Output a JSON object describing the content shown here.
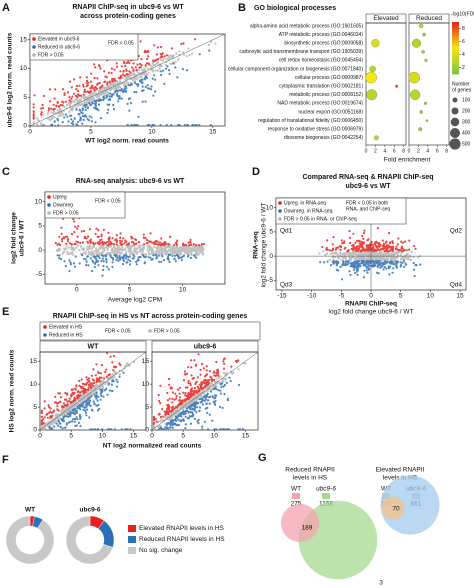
{
  "panel_a": {
    "letter": "A",
    "title": [
      "RNAPII ChIP-seq in ubc9-6 vs WT",
      "across protein-coding genes"
    ],
    "legend": [
      {
        "label": "Elevated in ubc9-6",
        "color": "#e8211d"
      },
      {
        "label": "Reduced in ubc9-6",
        "color": "#2b6fb6"
      },
      {
        "label": "FDR > 0.05",
        "color": "#b5b5b5"
      }
    ],
    "legend_note": "FDR < 0.05",
    "xlabel": "WT log2 norm. read counts",
    "ylabel": [
      "ubc9-6 log2 norm. read counts"
    ],
    "xlim": [
      0,
      16
    ],
    "ylim": [
      0,
      16
    ],
    "xticks": [
      0,
      5,
      10,
      15
    ],
    "yticks": [
      0,
      5,
      10,
      15
    ]
  },
  "panel_b": {
    "letter": "B",
    "title": "GO biological processes",
    "terms": [
      "alpha-amino acid metabolic process (GO:1901605)",
      "ATP metabolic process (GO:0046034)",
      "biosynthetic process (GO:0009058)",
      "carboxylic acid transmembrane transport (GO:1905039)",
      "cell redox homeostasis (GO:0045454)",
      "cellular component organization or biogenesis (GO:0071840)",
      "cellular process (GO:0009987)",
      "cytoplasmic translation (GO:0002181)",
      "metabolic process (GO:0008152)",
      "NAD metabolic process (GO:0019674)",
      "nuclear export (GO:0051168)",
      "regulation of translational fidelity (GO:0006450)",
      "response to oxidative stress (GO:0006979)",
      "ribosome biogenesis (GO:0042254)"
    ],
    "groups": [
      {
        "name": "Elevated",
        "color": "#e8211d",
        "fold": [
          null,
          null,
          2,
          null,
          null,
          1.4,
          1.1,
          6.5,
          1.2,
          null,
          null,
          null,
          null,
          2.2
        ],
        "genes": [
          null,
          null,
          250,
          null,
          null,
          150,
          500,
          30,
          450,
          null,
          null,
          null,
          null,
          80
        ],
        "neglog10_fdr": [
          null,
          null,
          4,
          null,
          null,
          3,
          5,
          8,
          3,
          null,
          null,
          null,
          null,
          3
        ]
      },
      {
        "name": "Reduced",
        "color": "#2b6fb6",
        "fold": [
          2.6,
          3.2,
          1.6,
          3,
          3.6,
          null,
          1.1,
          null,
          1.3,
          3.5,
          2.6,
          3.8,
          2.4,
          null
        ],
        "genes": [
          60,
          40,
          300,
          40,
          30,
          null,
          500,
          null,
          400,
          30,
          40,
          20,
          50,
          null
        ],
        "neglog10_fdr": [
          3,
          2,
          3,
          2,
          2,
          null,
          4,
          null,
          3,
          2,
          2,
          2,
          2,
          null
        ]
      }
    ],
    "xlabel": "Fold enrichment",
    "xlim": [
      0,
      8.5
    ],
    "xticks": [
      0,
      2,
      4,
      6,
      8
    ],
    "colorbar_title": "-log10(FDR)",
    "colorbar_lim": [
      1,
      9
    ],
    "colorbar_ticks": [
      2,
      4,
      6,
      8
    ],
    "size_title": [
      "Number",
      "of genes"
    ],
    "size_ticks": [
      100,
      200,
      300,
      400,
      500
    ]
  },
  "panel_c": {
    "letter": "C",
    "title": [
      "RNA-seq analysis: ubc9-6 vs WT"
    ],
    "legend": [
      {
        "label": "Upreg",
        "color": "#e8211d"
      },
      {
        "label": "Downreg",
        "color": "#2b6fb6"
      },
      {
        "label": "FDR > 0.05",
        "color": "#b5b5b5"
      }
    ],
    "legend_note": "FDR < 0.05",
    "xlabel": "Average log2 CPM",
    "ylabel": [
      "log2 fold change",
      "ubc9-6 / WT"
    ],
    "xlim": [
      -3,
      14
    ],
    "ylim": [
      -7,
      12
    ],
    "xticks": [
      0,
      5,
      10
    ],
    "yticks": [
      -5,
      0,
      5,
      10
    ]
  },
  "panel_d": {
    "letter": "D",
    "title": [
      "Compared RNA-seq & RNAPII ChIP-seq",
      "ubc9-6 vs WT"
    ],
    "legend": [
      {
        "label": "Upreg. in RNA-seq",
        "color": "#e8211d"
      },
      {
        "label": "Downreg. in RNA-seq",
        "color": "#2b6fb6"
      },
      {
        "label": "FDR > 0.05 in RNA- or ChIP-seq",
        "color": "#b5b5b5"
      }
    ],
    "legend_note": [
      "FDR < 0.05 in both",
      "RNA- and ChIP-seq"
    ],
    "quadrants": [
      "Qd1",
      "Qd2",
      "Qd3",
      "Qd4"
    ],
    "xlabel": [
      "RNAPII ChIP-seq",
      "log2 fold change ubc9-6 / WT"
    ],
    "ylabel": [
      "RNA-seq",
      "log2 fold change ubc9-6 / WT"
    ],
    "xlim": [
      -16,
      16
    ],
    "ylim": [
      -7,
      12
    ],
    "xticks": [
      -15,
      -10,
      -5,
      0,
      5,
      10,
      15
    ],
    "yticks": [
      -5,
      0,
      5,
      10
    ]
  },
  "panel_e": {
    "letter": "E",
    "title": "RNAPII ChIP-seq in HS vs NT across protein-coding genes",
    "legend": [
      {
        "label": "Elevated in HS",
        "color": "#e8211d"
      },
      {
        "label": "Reduced in HS",
        "color": "#2b6fb6"
      },
      {
        "label": "FDR > 0.05",
        "color": "#b5b5b5"
      }
    ],
    "legend_note": "FDR < 0.05",
    "xlabel": "NT log2 normalized read counts",
    "ylabel": "HS log2 norm. read counts",
    "subpanels": [
      {
        "label": "WT",
        "xlim": [
          0,
          17
        ],
        "ylim": [
          0,
          17
        ],
        "xticks": [
          0,
          5,
          10,
          15
        ],
        "yticks": [
          0,
          5,
          10,
          15
        ]
      },
      {
        "label": "ubc9-6",
        "xlim": [
          0,
          17
        ],
        "ylim": [
          0,
          17
        ],
        "xticks": [
          0,
          5,
          10,
          15
        ],
        "yticks": [
          0,
          5,
          10,
          15
        ]
      }
    ]
  },
  "panel_f": {
    "letter": "F",
    "legend": [
      "Elevated RNAPII levels in HS",
      "Reduced RNAPII levels in HS",
      "No sig. change"
    ],
    "colors": [
      "#e8211d",
      "#2b6fb6",
      "#c8c8c8"
    ],
    "donuts": [
      {
        "name": "WT",
        "values": [
          3,
          6,
          91
        ]
      },
      {
        "name": "ubc9-6",
        "values": [
          10,
          20,
          70
        ]
      }
    ]
  },
  "panel_g": {
    "letter": "G",
    "groups": [
      {
        "title": [
          "Reduced RNAPII",
          "levels in HS"
        ],
        "sets": [
          {
            "name": "WT",
            "count": 275,
            "color": "#f4a3b0"
          },
          {
            "name": "ubc9-6",
            "count": 1168,
            "color": "#a6d98f"
          }
        ]
      },
      {
        "title": [
          "Elevated RNAPII",
          "levels in HS"
        ],
        "sets": [
          {
            "name": "WT",
            "count": 100,
            "color": "#f7c28a"
          },
          {
            "name": "ubc9-6",
            "count": 661,
            "color": "#a3cbec"
          }
        ]
      }
    ],
    "overlaps": [
      189,
      70,
      3
    ]
  }
}
